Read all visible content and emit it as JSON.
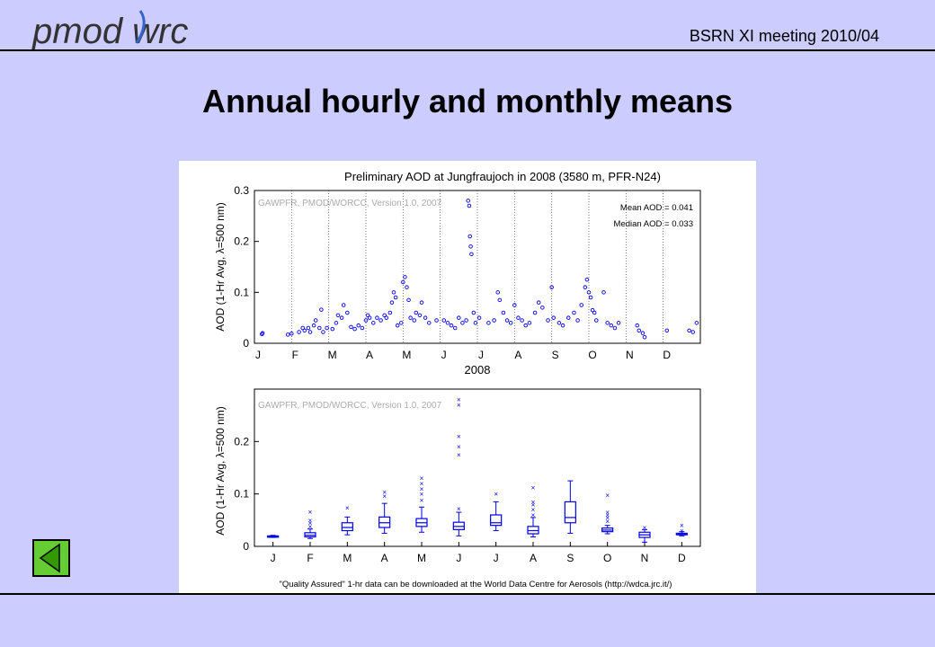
{
  "header": {
    "logo_text": "pmod wrc",
    "meeting": "BSRN XI meeting  2010/04"
  },
  "slide": {
    "title": "Annual hourly and monthly means"
  },
  "colors": {
    "background": "#ccccff",
    "marker": "#0000ee",
    "nav_button": "#66cc33"
  },
  "icons": [
    "back-triangle-icon"
  ],
  "chart_data": [
    {
      "type": "scatter",
      "title": "Preliminary AOD at Jungfraujoch in 2008 (3580 m, PFR-N24)",
      "watermark": "GAWPFR, PMOD/WORCC, Version 1.0, 2007",
      "annotations": [
        "Mean AOD = 0.041",
        "Median AOD = 0.033"
      ],
      "ylabel": "AOD (1-Hr Avg, λ=500 nm)",
      "xlabel": "2008",
      "xticks": [
        "J",
        "F",
        "M",
        "A",
        "M",
        "J",
        "J",
        "A",
        "S",
        "O",
        "N",
        "D"
      ],
      "yticks": [
        "0",
        "0.1",
        "0.2",
        "0.3"
      ],
      "ylim": [
        0,
        0.3
      ],
      "xlim": [
        0,
        12
      ],
      "grid": "dotted vertical lines at month boundaries",
      "series": [
        {
          "points": [
            [
              0.2,
              0.018
            ],
            [
              0.22,
              0.02
            ],
            [
              0.9,
              0.017
            ],
            [
              1.0,
              0.019
            ],
            [
              1.2,
              0.022
            ],
            [
              1.3,
              0.03
            ],
            [
              1.35,
              0.025
            ],
            [
              1.45,
              0.03
            ],
            [
              1.5,
              0.022
            ],
            [
              1.6,
              0.035
            ],
            [
              1.65,
              0.045
            ],
            [
              1.75,
              0.03
            ],
            [
              1.8,
              0.066
            ],
            [
              1.85,
              0.022
            ],
            [
              1.95,
              0.03
            ],
            [
              2.1,
              0.028
            ],
            [
              2.2,
              0.04
            ],
            [
              2.25,
              0.055
            ],
            [
              2.35,
              0.05
            ],
            [
              2.4,
              0.075
            ],
            [
              2.5,
              0.06
            ],
            [
              2.6,
              0.032
            ],
            [
              2.7,
              0.028
            ],
            [
              2.8,
              0.035
            ],
            [
              2.9,
              0.03
            ],
            [
              3.0,
              0.045
            ],
            [
              3.05,
              0.055
            ],
            [
              3.1,
              0.05
            ],
            [
              3.2,
              0.04
            ],
            [
              3.3,
              0.05
            ],
            [
              3.4,
              0.045
            ],
            [
              3.5,
              0.055
            ],
            [
              3.55,
              0.05
            ],
            [
              3.65,
              0.06
            ],
            [
              3.7,
              0.08
            ],
            [
              3.75,
              0.1
            ],
            [
              3.8,
              0.09
            ],
            [
              3.85,
              0.035
            ],
            [
              3.95,
              0.04
            ],
            [
              4.0,
              0.12
            ],
            [
              4.05,
              0.13
            ],
            [
              4.1,
              0.11
            ],
            [
              4.15,
              0.085
            ],
            [
              4.2,
              0.05
            ],
            [
              4.3,
              0.045
            ],
            [
              4.35,
              0.06
            ],
            [
              4.45,
              0.055
            ],
            [
              4.5,
              0.08
            ],
            [
              4.6,
              0.05
            ],
            [
              4.7,
              0.04
            ],
            [
              4.9,
              0.045
            ],
            [
              5.1,
              0.045
            ],
            [
              5.2,
              0.04
            ],
            [
              5.3,
              0.035
            ],
            [
              5.4,
              0.03
            ],
            [
              5.5,
              0.05
            ],
            [
              5.6,
              0.04
            ],
            [
              5.7,
              0.045
            ],
            [
              5.75,
              0.28
            ],
            [
              5.78,
              0.27
            ],
            [
              5.8,
              0.21
            ],
            [
              5.82,
              0.19
            ],
            [
              5.84,
              0.175
            ],
            [
              5.9,
              0.06
            ],
            [
              5.95,
              0.04
            ],
            [
              6.05,
              0.05
            ],
            [
              6.3,
              0.04
            ],
            [
              6.45,
              0.045
            ],
            [
              6.55,
              0.1
            ],
            [
              6.6,
              0.085
            ],
            [
              6.7,
              0.06
            ],
            [
              6.8,
              0.045
            ],
            [
              6.9,
              0.04
            ],
            [
              7.0,
              0.075
            ],
            [
              7.1,
              0.05
            ],
            [
              7.2,
              0.045
            ],
            [
              7.3,
              0.035
            ],
            [
              7.4,
              0.04
            ],
            [
              7.55,
              0.06
            ],
            [
              7.65,
              0.08
            ],
            [
              7.75,
              0.07
            ],
            [
              7.9,
              0.045
            ],
            [
              8.0,
              0.11
            ],
            [
              8.05,
              0.05
            ],
            [
              8.2,
              0.04
            ],
            [
              8.3,
              0.035
            ],
            [
              8.45,
              0.05
            ],
            [
              8.6,
              0.06
            ],
            [
              8.7,
              0.045
            ],
            [
              8.8,
              0.075
            ],
            [
              8.9,
              0.11
            ],
            [
              8.95,
              0.125
            ],
            [
              9.0,
              0.1
            ],
            [
              9.05,
              0.09
            ],
            [
              9.1,
              0.065
            ],
            [
              9.15,
              0.06
            ],
            [
              9.2,
              0.045
            ],
            [
              9.4,
              0.1
            ],
            [
              9.5,
              0.04
            ],
            [
              9.6,
              0.035
            ],
            [
              9.7,
              0.03
            ],
            [
              9.8,
              0.04
            ],
            [
              10.3,
              0.035
            ],
            [
              10.35,
              0.025
            ],
            [
              10.45,
              0.02
            ],
            [
              10.5,
              0.012
            ],
            [
              11.1,
              0.025
            ],
            [
              11.7,
              0.025
            ],
            [
              11.8,
              0.022
            ],
            [
              11.9,
              0.04
            ]
          ]
        }
      ]
    },
    {
      "type": "box",
      "watermark": "GAWPFR, PMOD/WORCC, Version 1.0, 2007",
      "ylabel": "AOD (1-Hr Avg, λ=500 nm)",
      "yticks": [
        "0",
        "0.1",
        "0.2"
      ],
      "ylim": [
        0,
        0.3
      ],
      "categories": [
        "J",
        "F",
        "M",
        "A",
        "M",
        "J",
        "J",
        "A",
        "S",
        "O",
        "N",
        "D"
      ],
      "boxes": [
        {
          "min": 0.017,
          "q1": 0.018,
          "median": 0.019,
          "q3": 0.02,
          "max": 0.021,
          "outliers": []
        },
        {
          "min": 0.015,
          "q1": 0.018,
          "median": 0.021,
          "q3": 0.026,
          "max": 0.033,
          "outliers": [
            0.038,
            0.045,
            0.05,
            0.066
          ]
        },
        {
          "min": 0.022,
          "q1": 0.03,
          "median": 0.036,
          "q3": 0.045,
          "max": 0.056,
          "outliers": [
            0.074
          ]
        },
        {
          "min": 0.025,
          "q1": 0.036,
          "median": 0.045,
          "q3": 0.056,
          "max": 0.082,
          "outliers": [
            0.096,
            0.104
          ]
        },
        {
          "min": 0.027,
          "q1": 0.038,
          "median": 0.045,
          "q3": 0.053,
          "max": 0.075,
          "outliers": [
            0.088,
            0.1,
            0.11,
            0.12,
            0.13
          ]
        },
        {
          "min": 0.02,
          "q1": 0.032,
          "median": 0.038,
          "q3": 0.046,
          "max": 0.065,
          "outliers": [
            0.072,
            0.175,
            0.19,
            0.21,
            0.27,
            0.28
          ]
        },
        {
          "min": 0.03,
          "q1": 0.04,
          "median": 0.045,
          "q3": 0.06,
          "max": 0.085,
          "outliers": [
            0.1
          ]
        },
        {
          "min": 0.018,
          "q1": 0.024,
          "median": 0.03,
          "q3": 0.038,
          "max": 0.055,
          "outliers": [
            0.06,
            0.07,
            0.08,
            0.085,
            0.112
          ]
        },
        {
          "min": 0.025,
          "q1": 0.045,
          "median": 0.055,
          "q3": 0.085,
          "max": 0.125,
          "outliers": []
        },
        {
          "min": 0.024,
          "q1": 0.028,
          "median": 0.031,
          "q3": 0.035,
          "max": 0.04,
          "outliers": [
            0.048,
            0.055,
            0.06,
            0.065,
            0.098
          ]
        },
        {
          "min": 0.008,
          "q1": 0.017,
          "median": 0.022,
          "q3": 0.027,
          "max": 0.032,
          "outliers": [
            0.036
          ]
        },
        {
          "min": 0.02,
          "q1": 0.022,
          "median": 0.024,
          "q3": 0.025,
          "max": 0.028,
          "outliers": [
            0.03,
            0.04
          ]
        }
      ],
      "footnote": "\"Quality Assured\" 1-hr data can be downloaded at the World Data Centre for Aerosols (http://wdca.jrc.it/)"
    }
  ]
}
